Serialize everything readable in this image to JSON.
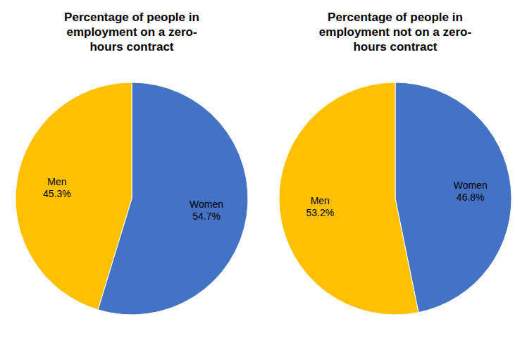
{
  "chart_data": [
    {
      "type": "pie",
      "title": "Percentage of people in\nemployment on a zero-\nhours contract",
      "categories": [
        "Women",
        "Men"
      ],
      "values": [
        54.7,
        45.3
      ],
      "value_labels": [
        "54.7%",
        "45.3%"
      ],
      "data_labels": true,
      "colors": [
        "#4472C4",
        "#FFC000"
      ]
    },
    {
      "type": "pie",
      "title": "Percentage of people in\nemployment not on a zero-\nhours contract",
      "categories": [
        "Women",
        "Men"
      ],
      "values": [
        46.8,
        53.2
      ],
      "value_labels": [
        "46.8%",
        "53.2%"
      ],
      "data_labels": true,
      "colors": [
        "#4472C4",
        "#FFC000"
      ]
    }
  ]
}
